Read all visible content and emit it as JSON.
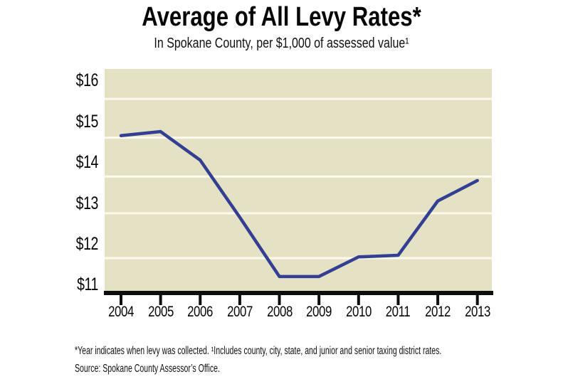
{
  "page": {
    "background": "#ffffff"
  },
  "header": {
    "title": "Average of All Levy Rates*",
    "subtitle": "In Spokane County, per $1,000 of assessed value¹"
  },
  "footnotes": {
    "note": "*Year indicates when levy was collected. ¹Includes county, city, state, and junior and senior taxing district rates.",
    "source": "Source: Spokane County Assessor’s Office."
  },
  "chart_data": {
    "type": "line",
    "title": "Average of All Levy Rates*",
    "subtitle": "In Spokane County, per $1,000 of assessed value¹",
    "categories": [
      "2004",
      "2005",
      "2006",
      "2007",
      "2008",
      "2009",
      "2010",
      "2011",
      "2012",
      "2013"
    ],
    "series": [
      {
        "name": "Average levy rate per $1,000 of assessed value",
        "values": [
          14.65,
          14.75,
          14.05,
          12.65,
          11.2,
          11.2,
          11.68,
          11.72,
          13.05,
          13.55
        ]
      }
    ],
    "xlabel": "",
    "ylabel": "",
    "ylim": [
      10.85,
      16.26
    ],
    "y_ticks": [
      {
        "value": 16,
        "label": "$16"
      },
      {
        "value": 15,
        "label": "$15"
      },
      {
        "value": 14,
        "label": "$14"
      },
      {
        "value": 13,
        "label": "$13"
      },
      {
        "value": 12,
        "label": "$12"
      },
      {
        "value": 11,
        "label": "$11"
      }
    ],
    "gridline_values": [
      15.55,
      14.6,
      13.65,
      12.75,
      11.65
    ],
    "grid": "on",
    "legend": "none",
    "colors": {
      "line": "#323f92",
      "plot_bg": "#e5e1c4",
      "gridline": "#fbfaec",
      "axis": "#0d0d0d",
      "text": "#060606"
    }
  }
}
